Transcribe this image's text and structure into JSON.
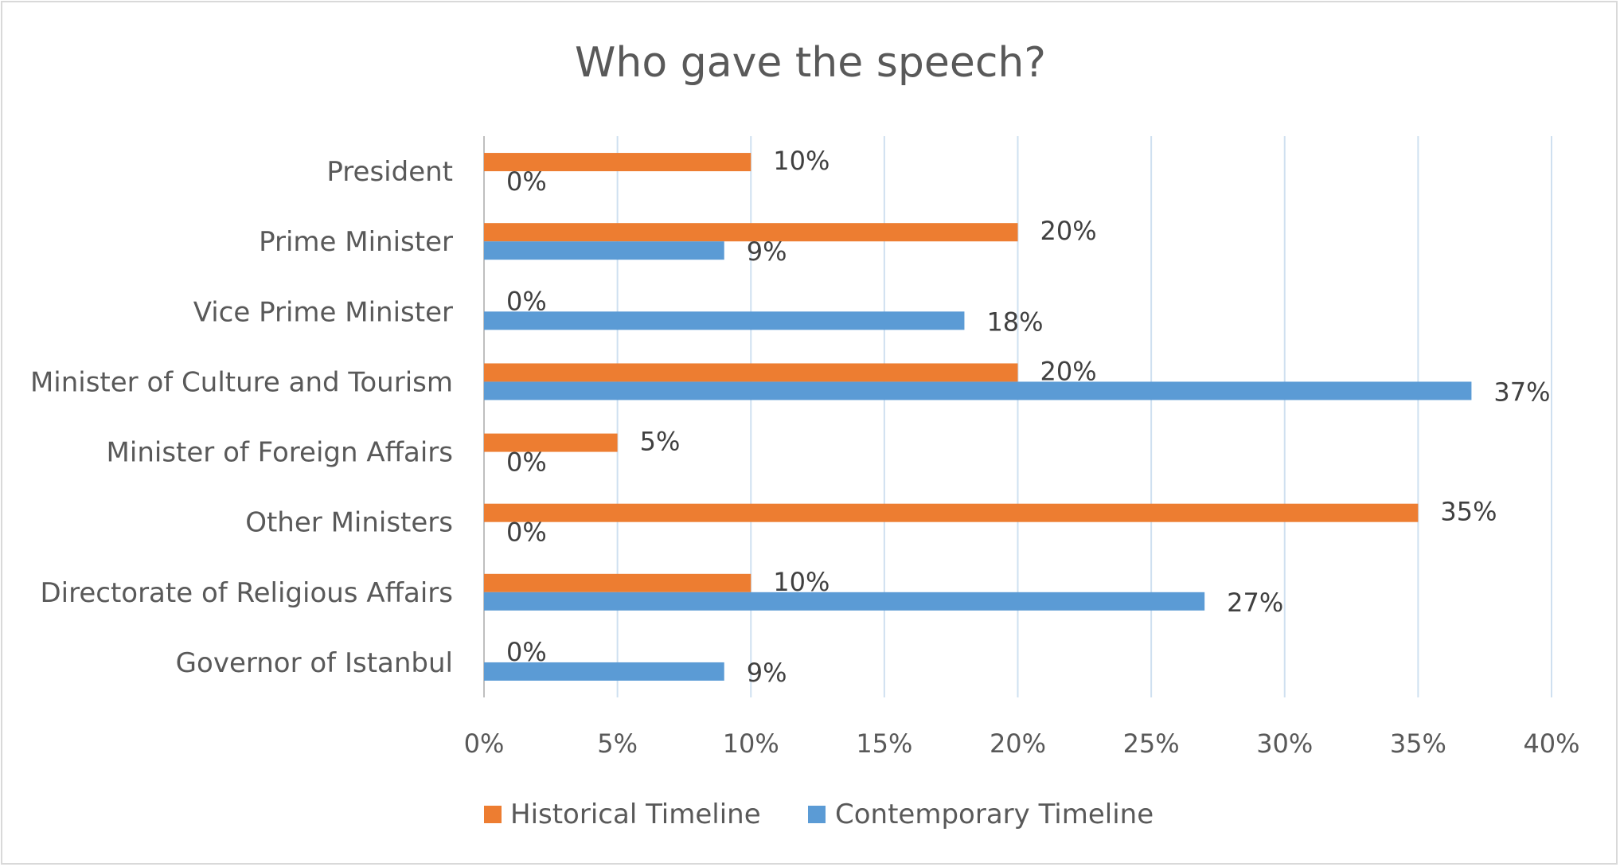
{
  "chart_data": {
    "type": "bar",
    "orientation": "horizontal",
    "title": "Who gave the speech?",
    "xlabel": "",
    "ylabel": "",
    "categories": [
      "President",
      "Prime Minister",
      "Vice Prime Minister",
      "Minister of Culture and Tourism",
      "Minister of Foreign Affairs",
      "Other Ministers",
      "Directorate of Religious Affairs",
      "Governor of Istanbul"
    ],
    "series": [
      {
        "name": "Historical Timeline",
        "color": "#ed7d31",
        "values": [
          10,
          20,
          0,
          20,
          5,
          35,
          10,
          0
        ],
        "labels": [
          "10%",
          "20%",
          "0%",
          "20%",
          "5%",
          "35%",
          "10%",
          "0%"
        ]
      },
      {
        "name": "Contemporary Timeline",
        "color": "#5b9bd5",
        "values": [
          0,
          9,
          18,
          37,
          0,
          0,
          27,
          9
        ],
        "labels": [
          "0%",
          "9%",
          "18%",
          "37%",
          "0%",
          "0%",
          "27%",
          "9%"
        ]
      }
    ],
    "xlim": [
      0,
      40
    ],
    "xticks": [
      0,
      5,
      10,
      15,
      20,
      25,
      30,
      35,
      40
    ],
    "xtick_labels": [
      "0%",
      "5%",
      "10%",
      "15%",
      "20%",
      "25%",
      "30%",
      "35%",
      "40%"
    ],
    "grid": "vertical",
    "legend": "bottom"
  }
}
